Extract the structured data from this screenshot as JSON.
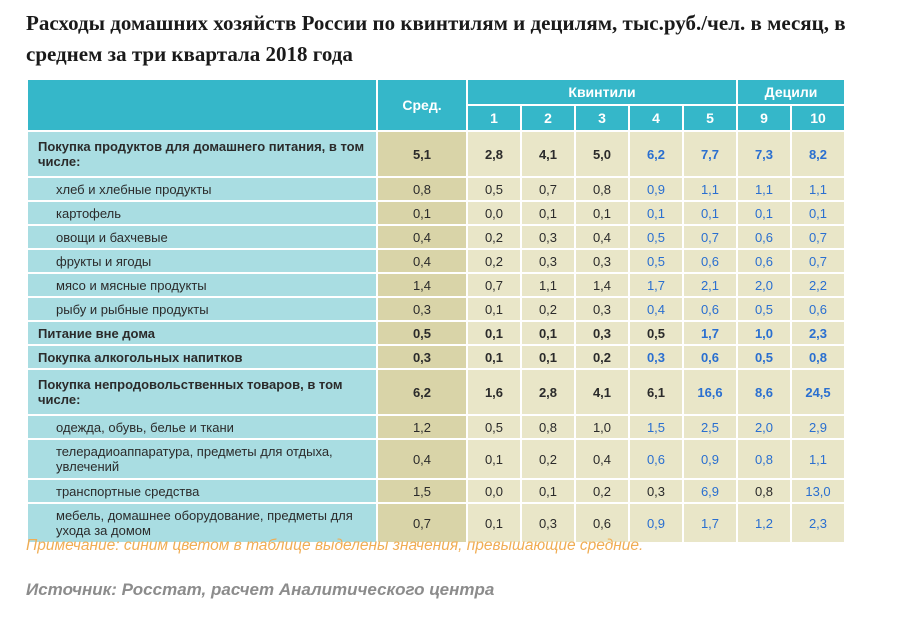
{
  "title": "Расходы домашних хозяйств России по квинтилям и децилям, тыс.руб./чел. в месяц, в среднем за три квартала 2018 года",
  "header": {
    "avg": "Сред.",
    "quintiles": "Квинтили",
    "deciles": "Децили",
    "cols": [
      "1",
      "2",
      "3",
      "4",
      "5",
      "9",
      "10"
    ]
  },
  "rows": [
    {
      "label": "Покупка продуктов для домашнего питания, в том числе:",
      "bold": true,
      "sub": false,
      "avg": "5,1",
      "values": [
        "2,8",
        "4,1",
        "5,0",
        "6,2",
        "7,7",
        "7,3",
        "8,2"
      ],
      "hi": [
        false,
        false,
        false,
        true,
        true,
        true,
        true
      ]
    },
    {
      "label": "хлеб и хлебные продукты",
      "bold": false,
      "sub": true,
      "avg": "0,8",
      "values": [
        "0,5",
        "0,7",
        "0,8",
        "0,9",
        "1,1",
        "1,1",
        "1,1"
      ],
      "hi": [
        false,
        false,
        false,
        true,
        true,
        true,
        true
      ]
    },
    {
      "label": "картофель",
      "bold": false,
      "sub": true,
      "avg": "0,1",
      "values": [
        "0,0",
        "0,1",
        "0,1",
        "0,1",
        "0,1",
        "0,1",
        "0,1"
      ],
      "hi": [
        false,
        false,
        false,
        true,
        true,
        true,
        true
      ]
    },
    {
      "label": "овощи и бахчевые",
      "bold": false,
      "sub": true,
      "avg": "0,4",
      "values": [
        "0,2",
        "0,3",
        "0,4",
        "0,5",
        "0,7",
        "0,6",
        "0,7"
      ],
      "hi": [
        false,
        false,
        false,
        true,
        true,
        true,
        true
      ]
    },
    {
      "label": "фрукты и ягоды",
      "bold": false,
      "sub": true,
      "avg": "0,4",
      "values": [
        "0,2",
        "0,3",
        "0,3",
        "0,5",
        "0,6",
        "0,6",
        "0,7"
      ],
      "hi": [
        false,
        false,
        false,
        true,
        true,
        true,
        true
      ]
    },
    {
      "label": "мясо и мясные продукты",
      "bold": false,
      "sub": true,
      "avg": "1,4",
      "values": [
        "0,7",
        "1,1",
        "1,4",
        "1,7",
        "2,1",
        "2,0",
        "2,2"
      ],
      "hi": [
        false,
        false,
        false,
        true,
        true,
        true,
        true
      ]
    },
    {
      "label": "рыбу и рыбные продукты",
      "bold": false,
      "sub": true,
      "avg": "0,3",
      "values": [
        "0,1",
        "0,2",
        "0,3",
        "0,4",
        "0,6",
        "0,5",
        "0,6"
      ],
      "hi": [
        false,
        false,
        false,
        true,
        true,
        true,
        true
      ]
    },
    {
      "label": "Питание вне дома",
      "bold": true,
      "sub": false,
      "avg": "0,5",
      "values": [
        "0,1",
        "0,1",
        "0,3",
        "0,5",
        "1,7",
        "1,0",
        "2,3"
      ],
      "hi": [
        false,
        false,
        false,
        false,
        true,
        true,
        true
      ]
    },
    {
      "label": "Покупка алкогольных напитков",
      "bold": true,
      "sub": false,
      "avg": "0,3",
      "values": [
        "0,1",
        "0,1",
        "0,2",
        "0,3",
        "0,6",
        "0,5",
        "0,8"
      ],
      "hi": [
        false,
        false,
        false,
        true,
        true,
        true,
        true
      ]
    },
    {
      "label": "Покупка непродовольственных товаров, в том числе:",
      "bold": true,
      "sub": false,
      "avg": "6,2",
      "values": [
        "1,6",
        "2,8",
        "4,1",
        "6,1",
        "16,6",
        "8,6",
        "24,5"
      ],
      "hi": [
        false,
        false,
        false,
        false,
        true,
        true,
        true
      ]
    },
    {
      "label": "одежда, обувь, белье и ткани",
      "bold": false,
      "sub": true,
      "avg": "1,2",
      "values": [
        "0,5",
        "0,8",
        "1,0",
        "1,5",
        "2,5",
        "2,0",
        "2,9"
      ],
      "hi": [
        false,
        false,
        false,
        true,
        true,
        true,
        true
      ]
    },
    {
      "label": "телерадиоаппаратура, предметы для отдыха, увлечений",
      "bold": false,
      "sub": true,
      "avg": "0,4",
      "values": [
        "0,1",
        "0,2",
        "0,4",
        "0,6",
        "0,9",
        "0,8",
        "1,1"
      ],
      "hi": [
        false,
        false,
        false,
        true,
        true,
        true,
        true
      ]
    },
    {
      "label": "транспортные средства",
      "bold": false,
      "sub": true,
      "avg": "1,5",
      "values": [
        "0,0",
        "0,1",
        "0,2",
        "0,3",
        "6,9",
        "0,8",
        "13,0"
      ],
      "hi": [
        false,
        false,
        false,
        false,
        true,
        false,
        true
      ]
    },
    {
      "label": "мебель, домашнее оборудование, предметы для ухода за домом",
      "bold": false,
      "sub": true,
      "avg": "0,7",
      "values": [
        "0,1",
        "0,3",
        "0,6",
        "0,9",
        "1,7",
        "1,2",
        "2,3"
      ],
      "hi": [
        false,
        false,
        false,
        true,
        true,
        true,
        true
      ]
    }
  ],
  "note": "Примечание: синим цветом в таблице выделены значения, превышающие средние.",
  "source": "Источник: Росстат, расчет Аналитического центра",
  "colors": {
    "header": "#35b7c9",
    "label_bg": "#a9dde2",
    "value_bg": "#e9e6c8",
    "highlight": "#2a6fd0",
    "note": "#f0ad54"
  }
}
